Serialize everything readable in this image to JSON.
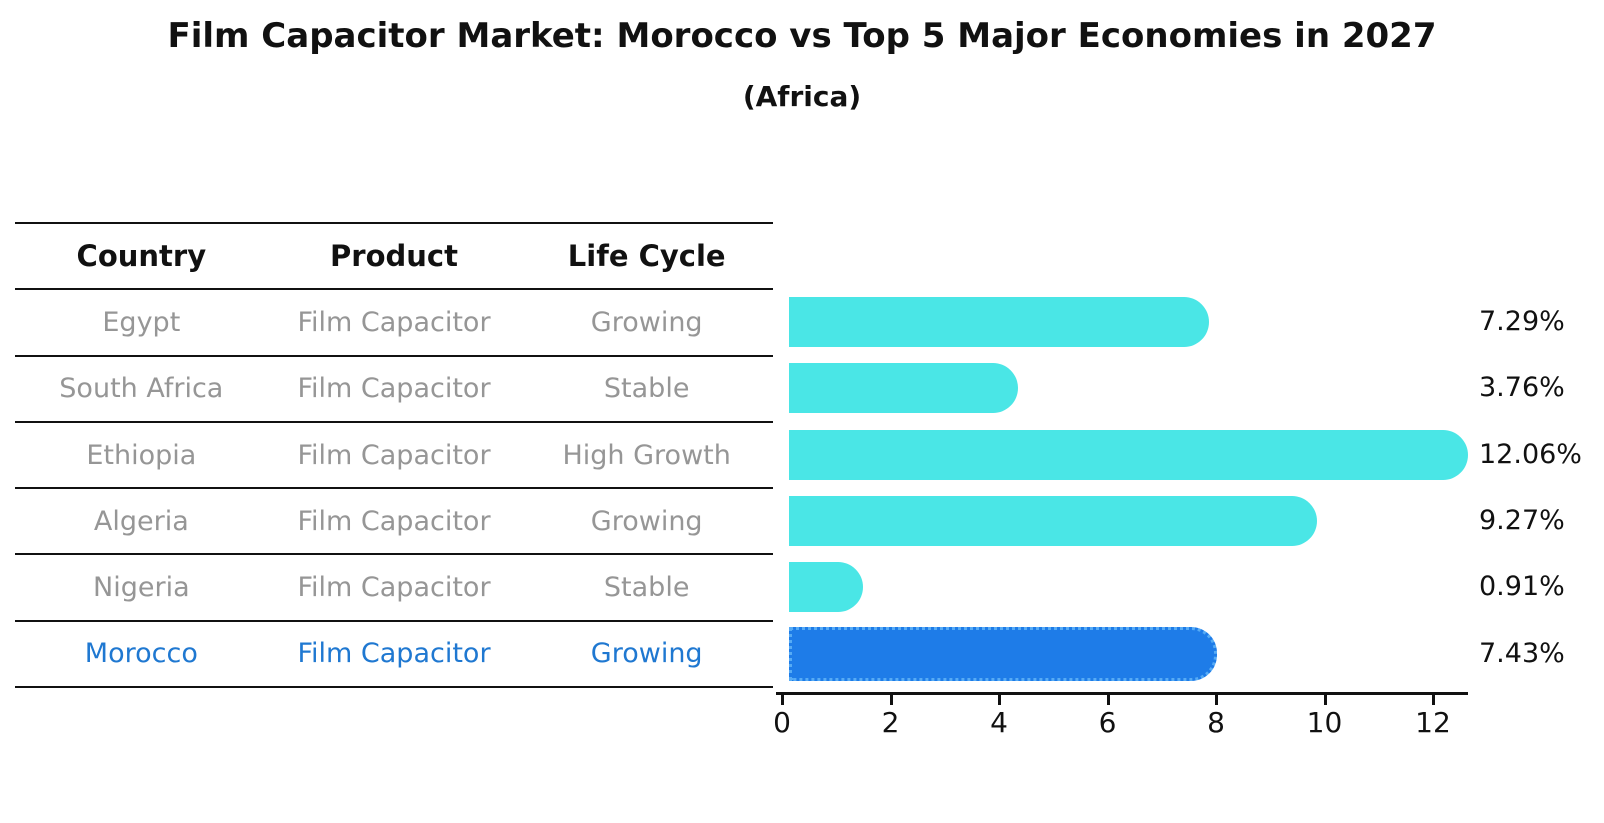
{
  "title": "Film Capacitor Market: Morocco vs Top 5 Major Economies in 2027",
  "subtitle": "(Africa)",
  "table": {
    "columns": [
      "Country",
      "Product",
      "Life Cycle"
    ],
    "rows": [
      {
        "country": "Egypt",
        "product": "Film Capacitor",
        "life_cycle": "Growing"
      },
      {
        "country": "South Africa",
        "product": "Film Capacitor",
        "life_cycle": "Stable"
      },
      {
        "country": "Ethiopia",
        "product": "Film Capacitor",
        "life_cycle": "High Growth"
      },
      {
        "country": "Algeria",
        "product": "Film Capacitor",
        "life_cycle": "Growing"
      },
      {
        "country": "Nigeria",
        "product": "Film Capacitor",
        "life_cycle": "Stable"
      },
      {
        "country": "Morocco",
        "product": "Film Capacitor",
        "life_cycle": "Growing"
      }
    ],
    "highlighted_row": "Morocco"
  },
  "chart_data": {
    "type": "bar",
    "orientation": "horizontal",
    "title": "",
    "xlabel": "",
    "ylabel": "",
    "grid": false,
    "legend": false,
    "categories": [
      "Egypt",
      "South Africa",
      "Ethiopia",
      "Algeria",
      "Nigeria",
      "Morocco"
    ],
    "values": [
      7.29,
      3.76,
      12.06,
      9.27,
      0.91,
      7.43
    ],
    "value_labels": [
      "7.29%",
      "3.76%",
      "12.06%",
      "9.27%",
      "0.91%",
      "7.43%"
    ],
    "xticks": [
      0,
      2,
      4,
      6,
      8,
      10,
      12
    ],
    "xtick_labels": [
      "0",
      "2",
      "4",
      "6",
      "8",
      "10",
      "12"
    ],
    "xlim": [
      0,
      12.5
    ],
    "bar_color": "#4AE6E6",
    "highlight_index": 5,
    "highlight_bar_color": "#1E7CE8",
    "highlight_border_color": "#56ABF5",
    "value_label_color": "#111111"
  },
  "colors": {
    "title_text": "#111111",
    "table_header_text": "#111111",
    "table_row_text": "#969696",
    "highlight_text": "#1F78D1",
    "table_line": "#111111",
    "axis_line": "#111111"
  }
}
